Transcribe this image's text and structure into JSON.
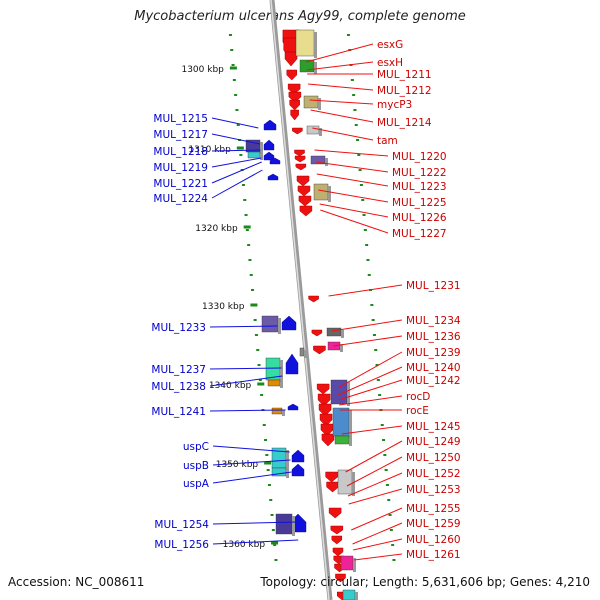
{
  "title": "Mycobacterium ulcerans Agy99, complete genome",
  "accession": "Accession: NC_008611",
  "topology": "Topology: circular; Length: 5,631,606 bp; Genes: 4,210",
  "colors": {
    "forward": "#ee1111",
    "reverse": "#1111dd",
    "scale": "#1a8a1a",
    "backbone": "#8a8a8a"
  },
  "kbp_ticks": [
    {
      "label": "1300 kbp",
      "pos_kbp": 1300
    },
    {
      "label": "1310 kbp",
      "pos_kbp": 1310
    },
    {
      "label": "1320 kbp",
      "pos_kbp": 1320
    },
    {
      "label": "1330 kbp",
      "pos_kbp": 1330
    },
    {
      "label": "1340 kbp",
      "pos_kbp": 1340
    },
    {
      "label": "1350 kbp",
      "pos_kbp": 1350
    },
    {
      "label": "1360 kbp",
      "pos_kbp": 1360
    }
  ],
  "right_labels": [
    {
      "text": "esxG"
    },
    {
      "text": "esxH"
    },
    {
      "text": "MUL_1211"
    },
    {
      "text": "MUL_1212"
    },
    {
      "text": "mycP3"
    },
    {
      "text": "MUL_1214"
    },
    {
      "text": "tam"
    },
    {
      "text": "MUL_1220"
    },
    {
      "text": "MUL_1222"
    },
    {
      "text": "MUL_1223"
    },
    {
      "text": "MUL_1225"
    },
    {
      "text": "MUL_1226"
    },
    {
      "text": "MUL_1227"
    },
    {
      "text": "MUL_1231"
    },
    {
      "text": "MUL_1234"
    },
    {
      "text": "MUL_1236"
    },
    {
      "text": "MUL_1239"
    },
    {
      "text": "MUL_1240"
    },
    {
      "text": "MUL_1242"
    },
    {
      "text": "rocD"
    },
    {
      "text": "rocE"
    },
    {
      "text": "MUL_1245"
    },
    {
      "text": "MUL_1249"
    },
    {
      "text": "MUL_1250"
    },
    {
      "text": "MUL_1252"
    },
    {
      "text": "MUL_1253"
    },
    {
      "text": "MUL_1255"
    },
    {
      "text": "MUL_1259"
    },
    {
      "text": "MUL_1260"
    },
    {
      "text": "MUL_1261"
    }
  ],
  "left_labels": [
    {
      "text": "MUL_1215"
    },
    {
      "text": "MUL_1217"
    },
    {
      "text": "MUL_1218"
    },
    {
      "text": "MUL_1219"
    },
    {
      "text": "MUL_1221"
    },
    {
      "text": "MUL_1224"
    },
    {
      "text": "MUL_1233"
    },
    {
      "text": "MUL_1237"
    },
    {
      "text": "MUL_1238"
    },
    {
      "text": "MUL_1241"
    },
    {
      "text": "uspC"
    },
    {
      "text": "uspB"
    },
    {
      "text": "uspA"
    },
    {
      "text": "MUL_1254"
    },
    {
      "text": "MUL_1256"
    }
  ]
}
